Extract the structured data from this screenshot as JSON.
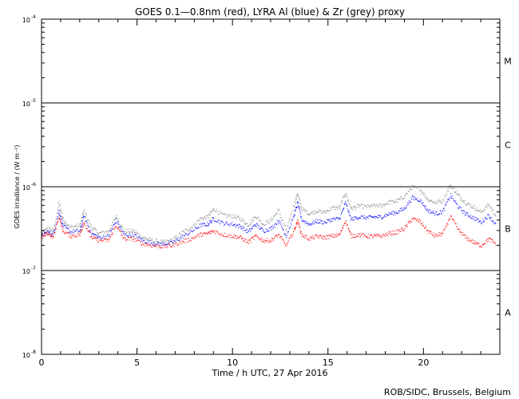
{
  "chart_data": {
    "type": "scatter",
    "title": "GOES 0.1—0.8nm (red), LYRA Al (blue) & Zr (grey) proxy",
    "xlabel": "Time / h UTC, 27 Apr 2016",
    "ylabel": "GOES irradiance / (W m⁻²)",
    "credit": "ROB/SIDC, Brussels, Belgium",
    "xlim": [
      0,
      24
    ],
    "ylim": [
      1e-08,
      0.0001
    ],
    "yscale": "log",
    "x_ticks": [
      0,
      5,
      10,
      15,
      20
    ],
    "x_tick_labels": [
      "0",
      "5",
      "10",
      "15",
      "20"
    ],
    "y_ticks": [
      {
        "base": "10",
        "exp": "-4",
        "value": 0.0001
      },
      {
        "base": "10",
        "exp": "-5",
        "value": 1e-05
      },
      {
        "base": "10",
        "exp": "-6",
        "value": 1e-06
      },
      {
        "base": "10",
        "exp": "-7",
        "value": 1e-07
      },
      {
        "base": "10",
        "exp": "-8",
        "value": 1e-08
      }
    ],
    "reference_lines": [
      1e-05,
      1e-06,
      1e-07
    ],
    "flare_classes": [
      {
        "label": "M",
        "center": 3.16e-05
      },
      {
        "label": "C",
        "center": 3.16e-06
      },
      {
        "label": "B",
        "center": 3.16e-07
      },
      {
        "label": "A",
        "center": 3.16e-08
      }
    ],
    "grid": false,
    "colors": {
      "red": "#ff0000",
      "blue": "#0000ff",
      "grey": "#888888"
    },
    "series": [
      {
        "color": "grey",
        "x": [
          0,
          0.3,
          0.6,
          0.9,
          1.1,
          1.5,
          2.0,
          2.2,
          2.6,
          3.0,
          3.5,
          3.9,
          4.3,
          4.8,
          5.3,
          5.8,
          6.3,
          6.8,
          7.3,
          7.8,
          8.3,
          8.7,
          9.0,
          9.5,
          10.0,
          10.4,
          10.8,
          11.2,
          11.6,
          12.0,
          12.4,
          12.8,
          13.2,
          13.4,
          13.6,
          14.0,
          14.4,
          14.8,
          15.2,
          15.6,
          15.9,
          16.2,
          16.6,
          17.0,
          17.4,
          17.8,
          18.2,
          18.6,
          19.0,
          19.4,
          19.8,
          20.2,
          20.6,
          21.0,
          21.4,
          21.8,
          22.2,
          22.6,
          23.0,
          23.4,
          23.8
        ],
        "y": [
          2.8e-07,
          3.2e-07,
          3e-07,
          6.5e-07,
          4.2e-07,
          3.3e-07,
          3.5e-07,
          5.2e-07,
          3.3e-07,
          2.8e-07,
          3e-07,
          4.5e-07,
          3e-07,
          3e-07,
          2.5e-07,
          2.3e-07,
          2.2e-07,
          2.3e-07,
          2.8e-07,
          3.3e-07,
          4.2e-07,
          4.4e-07,
          5.5e-07,
          4.6e-07,
          4.5e-07,
          4.2e-07,
          3.5e-07,
          4.5e-07,
          3.6e-07,
          4e-07,
          5.3e-07,
          3e-07,
          6e-07,
          8.5e-07,
          5.5e-07,
          4.8e-07,
          5.2e-07,
          5e-07,
          5.6e-07,
          5.7e-07,
          8.5e-07,
          5.5e-07,
          6e-07,
          5.8e-07,
          6e-07,
          6e-07,
          6.6e-07,
          6.8e-07,
          7.8e-07,
          1e-06,
          9.5e-07,
          7.2e-07,
          6.5e-07,
          6.9e-07,
          1.05e-06,
          8e-07,
          6.5e-07,
          5.8e-07,
          5e-07,
          6.2e-07,
          4.5e-07
        ]
      },
      {
        "color": "blue",
        "x": [
          0,
          0.3,
          0.6,
          0.9,
          1.1,
          1.5,
          2.0,
          2.2,
          2.6,
          3.0,
          3.5,
          3.9,
          4.3,
          4.8,
          5.3,
          5.8,
          6.3,
          6.8,
          7.3,
          7.8,
          8.3,
          8.7,
          9.0,
          9.5,
          10.0,
          10.4,
          10.8,
          11.2,
          11.6,
          12.0,
          12.4,
          12.8,
          13.2,
          13.4,
          13.6,
          14.0,
          14.4,
          14.8,
          15.2,
          15.6,
          15.9,
          16.2,
          16.6,
          17.0,
          17.4,
          17.8,
          18.2,
          18.6,
          19.0,
          19.4,
          19.8,
          20.2,
          20.6,
          21.0,
          21.4,
          21.8,
          22.2,
          22.6,
          23.0,
          23.4,
          23.8
        ],
        "y": [
          2.6e-07,
          2.9e-07,
          2.7e-07,
          5.2e-07,
          3.5e-07,
          2.9e-07,
          3e-07,
          4.5e-07,
          2.8e-07,
          2.5e-07,
          2.6e-07,
          4e-07,
          2.7e-07,
          2.7e-07,
          2.3e-07,
          2.15e-07,
          2.1e-07,
          2.15e-07,
          2.5e-07,
          2.9e-07,
          3.5e-07,
          3.6e-07,
          4.2e-07,
          3.7e-07,
          3.6e-07,
          3.4e-07,
          2.9e-07,
          3.6e-07,
          3e-07,
          3.2e-07,
          4e-07,
          2.6e-07,
          4.5e-07,
          6.5e-07,
          4.1e-07,
          3.6e-07,
          3.9e-07,
          3.8e-07,
          4.1e-07,
          4.2e-07,
          6.5e-07,
          4.1e-07,
          4.4e-07,
          4.3e-07,
          4.4e-07,
          4.4e-07,
          4.8e-07,
          5e-07,
          5.6e-07,
          7.5e-07,
          7e-07,
          5.3e-07,
          4.8e-07,
          5.1e-07,
          8e-07,
          5.8e-07,
          4.8e-07,
          4.3e-07,
          3.8e-07,
          4.6e-07,
          3.5e-07
        ]
      },
      {
        "color": "red",
        "x": [
          0,
          0.3,
          0.6,
          0.9,
          1.1,
          1.5,
          2.0,
          2.2,
          2.6,
          3.0,
          3.5,
          3.9,
          4.3,
          4.8,
          5.3,
          5.8,
          6.3,
          6.8,
          7.3,
          7.8,
          8.3,
          8.7,
          9.0,
          9.5,
          10.0,
          10.4,
          10.8,
          11.2,
          11.6,
          12.0,
          12.4,
          12.8,
          13.2,
          13.4,
          13.6,
          14.0,
          14.4,
          14.8,
          15.2,
          15.6,
          15.9,
          16.2,
          16.6,
          17.0,
          17.4,
          17.8,
          18.2,
          18.6,
          19.0,
          19.4,
          19.8,
          20.2,
          20.6,
          21.0,
          21.4,
          21.8,
          22.2,
          22.6,
          23.0,
          23.4,
          23.8
        ],
        "y": [
          2.5e-07,
          2.8e-07,
          2.5e-07,
          4.5e-07,
          3e-07,
          2.6e-07,
          2.7e-07,
          3.8e-07,
          2.5e-07,
          2.3e-07,
          2.3e-07,
          3.5e-07,
          2.4e-07,
          2.4e-07,
          2.1e-07,
          2e-07,
          1.95e-07,
          2e-07,
          2.2e-07,
          2.4e-07,
          2.7e-07,
          2.8e-07,
          3e-07,
          2.7e-07,
          2.6e-07,
          2.5e-07,
          2.2e-07,
          2.6e-07,
          2.3e-07,
          2.3e-07,
          2.7e-07,
          2e-07,
          3e-07,
          4e-07,
          2.7e-07,
          2.4e-07,
          2.6e-07,
          2.5e-07,
          2.6e-07,
          2.7e-07,
          4e-07,
          2.6e-07,
          2.7e-07,
          2.6e-07,
          2.6e-07,
          2.6e-07,
          2.8e-07,
          2.9e-07,
          3.2e-07,
          4.2e-07,
          3.9e-07,
          3e-07,
          2.6e-07,
          2.8e-07,
          4.5e-07,
          3.1e-07,
          2.5e-07,
          2.2e-07,
          2e-07,
          2.4e-07,
          2.1e-07
        ]
      }
    ]
  }
}
